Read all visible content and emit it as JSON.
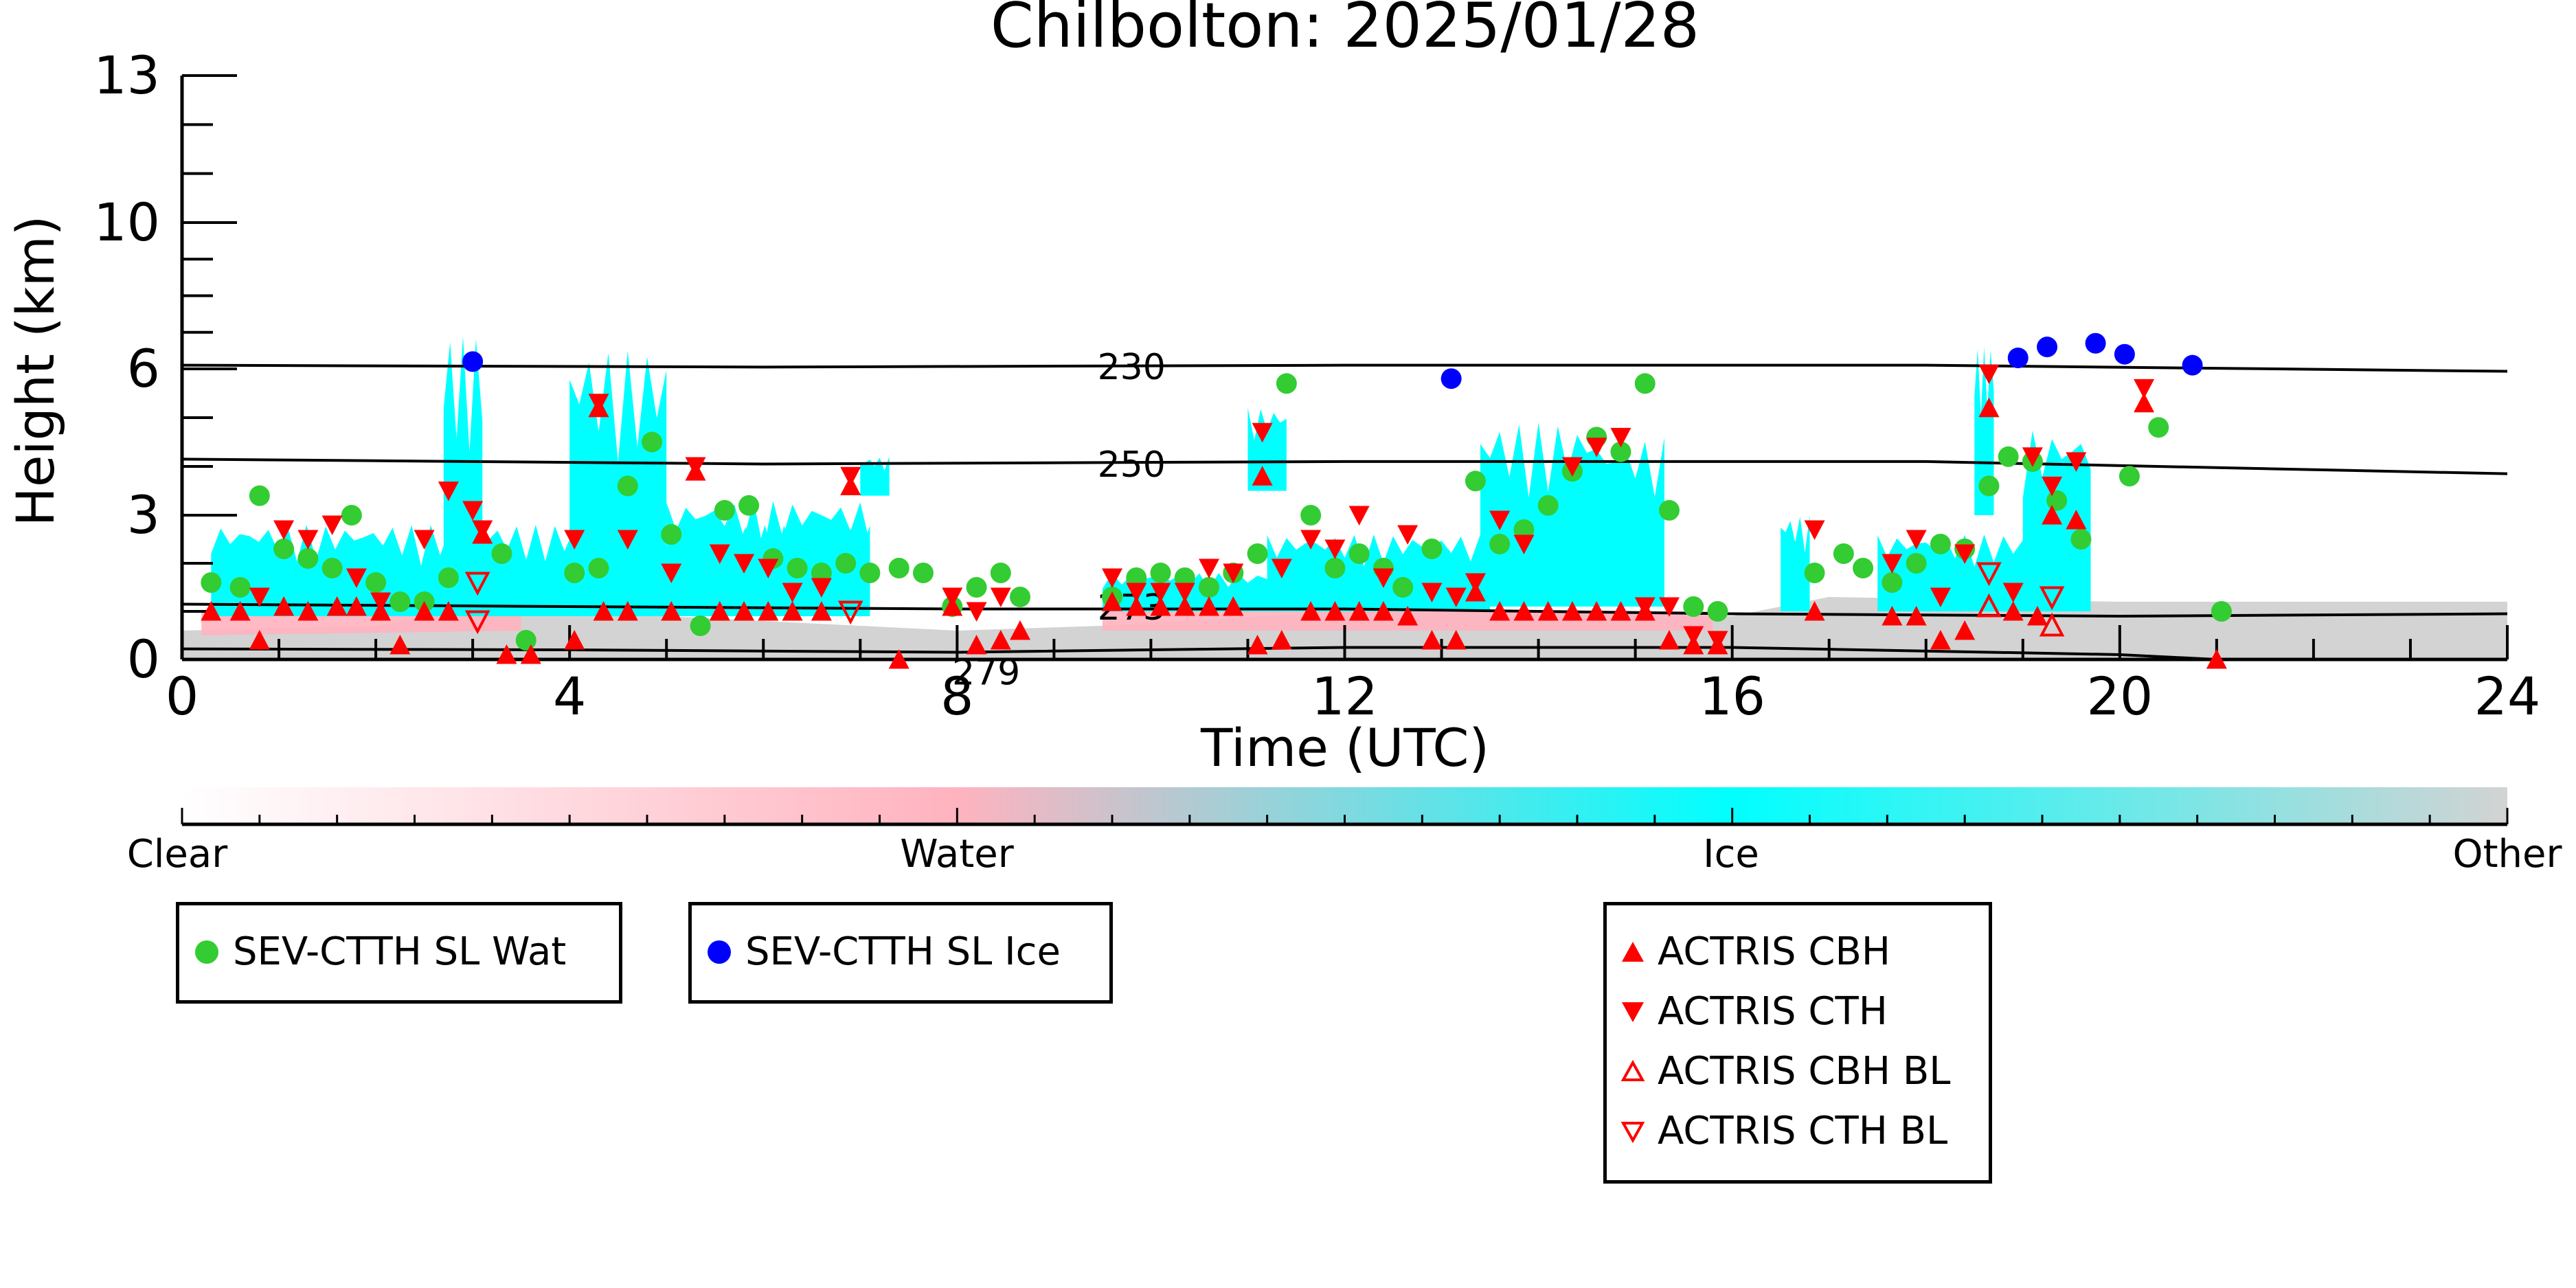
{
  "chart_data": {
    "type": "scatter",
    "title": "Chilbolton: 2025/01/28",
    "xlabel": "Time (UTC)",
    "ylabel": "Height (km)",
    "xlim": [
      0,
      24
    ],
    "ylim": [
      0,
      13
    ],
    "x_ticks": [
      0,
      4,
      8,
      12,
      16,
      20,
      24
    ],
    "y_ticks": [
      0,
      3,
      6,
      10,
      13
    ],
    "y_tick_labels": [
      "0",
      "3",
      "6",
      "10",
      "13"
    ],
    "y_tick_positions": [
      0,
      3,
      6,
      10,
      13
    ],
    "y_scale_note": "non-linear",
    "isotherms": [
      {
        "label": "230",
        "x": [
          0,
          6,
          12,
          18,
          24
        ],
        "y": [
          6.1,
          6.05,
          6.1,
          6.1,
          5.95
        ]
      },
      {
        "label": "250",
        "x": [
          0,
          6,
          12,
          18,
          24
        ],
        "y": [
          4.15,
          4.05,
          4.1,
          4.1,
          3.85
        ]
      },
      {
        "label": "273",
        "x": [
          0,
          4,
          8,
          12,
          16,
          20,
          24
        ],
        "y": [
          1.15,
          1.1,
          1.05,
          1.05,
          0.95,
          0.9,
          0.95
        ]
      },
      {
        "label": "279",
        "x": [
          0,
          4,
          8,
          12,
          16,
          20,
          21
        ],
        "y": [
          0.22,
          0.2,
          0.15,
          0.25,
          0.25,
          0.1,
          0.0
        ]
      }
    ],
    "colorbar": {
      "labels": [
        "Clear",
        "Water",
        "Ice",
        "Other"
      ],
      "colors": [
        "#ffffff",
        "#ffb3bf",
        "#00ffff",
        "#d3d3d3"
      ]
    },
    "series": [
      {
        "name": "SEV-CTTH SL Wat",
        "marker": "circle",
        "color": "#33cc33",
        "points": [
          [
            0.3,
            1.6
          ],
          [
            0.6,
            1.5
          ],
          [
            0.8,
            3.4
          ],
          [
            1.05,
            2.3
          ],
          [
            1.3,
            2.1
          ],
          [
            1.55,
            1.9
          ],
          [
            1.75,
            3.0
          ],
          [
            2.0,
            1.6
          ],
          [
            2.25,
            1.2
          ],
          [
            2.5,
            1.2
          ],
          [
            2.75,
            1.7
          ],
          [
            3.3,
            2.2
          ],
          [
            3.55,
            0.4
          ],
          [
            4.05,
            1.8
          ],
          [
            4.3,
            1.9
          ],
          [
            4.6,
            3.6
          ],
          [
            4.85,
            4.5
          ],
          [
            5.05,
            2.6
          ],
          [
            5.35,
            0.7
          ],
          [
            5.6,
            3.1
          ],
          [
            5.85,
            3.2
          ],
          [
            6.1,
            2.1
          ],
          [
            6.35,
            1.9
          ],
          [
            6.6,
            1.8
          ],
          [
            6.85,
            2.0
          ],
          [
            7.1,
            1.8
          ],
          [
            7.4,
            1.9
          ],
          [
            7.65,
            1.8
          ],
          [
            7.95,
            1.1
          ],
          [
            8.2,
            1.5
          ],
          [
            8.45,
            1.8
          ],
          [
            8.65,
            1.3
          ],
          [
            9.6,
            1.3
          ],
          [
            9.85,
            1.7
          ],
          [
            10.1,
            1.8
          ],
          [
            10.35,
            1.7
          ],
          [
            10.6,
            1.5
          ],
          [
            10.85,
            1.8
          ],
          [
            11.1,
            2.2
          ],
          [
            11.4,
            5.7
          ],
          [
            11.65,
            3.0
          ],
          [
            11.9,
            1.9
          ],
          [
            12.15,
            2.2
          ],
          [
            12.4,
            1.9
          ],
          [
            12.6,
            1.5
          ],
          [
            12.9,
            2.3
          ],
          [
            13.35,
            3.7
          ],
          [
            13.6,
            2.4
          ],
          [
            13.85,
            2.7
          ],
          [
            14.1,
            3.2
          ],
          [
            14.35,
            3.9
          ],
          [
            14.6,
            4.6
          ],
          [
            14.85,
            4.3
          ],
          [
            15.1,
            5.7
          ],
          [
            15.35,
            3.1
          ],
          [
            15.6,
            1.1
          ],
          [
            15.85,
            1.0
          ],
          [
            16.85,
            1.8
          ],
          [
            17.15,
            2.2
          ],
          [
            17.35,
            1.9
          ],
          [
            17.65,
            1.6
          ],
          [
            17.9,
            2.0
          ],
          [
            18.15,
            2.4
          ],
          [
            18.4,
            2.3
          ],
          [
            18.65,
            3.6
          ],
          [
            18.85,
            4.2
          ],
          [
            19.1,
            4.1
          ],
          [
            19.35,
            3.3
          ],
          [
            19.6,
            2.5
          ],
          [
            20.1,
            3.8
          ],
          [
            20.4,
            4.8
          ],
          [
            21.05,
            1.0
          ]
        ]
      },
      {
        "name": "SEV-CTTH SL Ice",
        "marker": "circle",
        "color": "#0000ff",
        "points": [
          [
            3.0,
            6.2
          ],
          [
            13.1,
            5.8
          ],
          [
            18.95,
            6.3
          ],
          [
            19.25,
            6.6
          ],
          [
            19.75,
            6.7
          ],
          [
            20.05,
            6.4
          ],
          [
            20.75,
            6.1
          ]
        ]
      },
      {
        "name": "ACTRIS CBH",
        "marker": "triangle-up",
        "color": "#ff0000",
        "filled": true,
        "points": [
          [
            0.3,
            1.0
          ],
          [
            0.6,
            1.0
          ],
          [
            0.8,
            0.4
          ],
          [
            1.05,
            1.1
          ],
          [
            1.3,
            1.0
          ],
          [
            1.6,
            1.1
          ],
          [
            1.8,
            1.1
          ],
          [
            2.05,
            1.0
          ],
          [
            2.25,
            0.3
          ],
          [
            2.5,
            1.0
          ],
          [
            2.75,
            1.0
          ],
          [
            3.1,
            2.6
          ],
          [
            3.35,
            0.1
          ],
          [
            3.6,
            0.1
          ],
          [
            4.05,
            0.4
          ],
          [
            4.3,
            5.2
          ],
          [
            4.35,
            1.0
          ],
          [
            4.6,
            1.0
          ],
          [
            5.05,
            1.0
          ],
          [
            5.3,
            3.9
          ],
          [
            5.55,
            1.0
          ],
          [
            5.8,
            1.0
          ],
          [
            6.05,
            1.0
          ],
          [
            6.3,
            1.0
          ],
          [
            6.6,
            1.0
          ],
          [
            6.9,
            3.6
          ],
          [
            7.4,
            0.0
          ],
          [
            7.95,
            1.1
          ],
          [
            8.2,
            0.3
          ],
          [
            8.45,
            0.4
          ],
          [
            8.65,
            0.6
          ],
          [
            9.6,
            1.2
          ],
          [
            9.85,
            1.1
          ],
          [
            10.1,
            1.1
          ],
          [
            10.35,
            1.1
          ],
          [
            10.6,
            1.1
          ],
          [
            10.85,
            1.1
          ],
          [
            11.1,
            0.3
          ],
          [
            11.15,
            3.8
          ],
          [
            11.35,
            0.4
          ],
          [
            11.65,
            1.0
          ],
          [
            11.9,
            1.0
          ],
          [
            12.15,
            1.0
          ],
          [
            12.4,
            1.0
          ],
          [
            12.65,
            0.9
          ],
          [
            12.9,
            0.4
          ],
          [
            13.15,
            0.4
          ],
          [
            13.35,
            1.4
          ],
          [
            13.6,
            1.0
          ],
          [
            13.85,
            1.0
          ],
          [
            14.1,
            1.0
          ],
          [
            14.35,
            1.0
          ],
          [
            14.6,
            1.0
          ],
          [
            14.85,
            1.0
          ],
          [
            15.1,
            1.0
          ],
          [
            15.35,
            0.4
          ],
          [
            15.6,
            0.3
          ],
          [
            15.85,
            0.3
          ],
          [
            16.85,
            1.0
          ],
          [
            17.65,
            0.9
          ],
          [
            17.9,
            0.9
          ],
          [
            18.15,
            0.4
          ],
          [
            18.4,
            0.6
          ],
          [
            18.65,
            5.2
          ],
          [
            18.9,
            1.0
          ],
          [
            19.15,
            0.9
          ],
          [
            19.3,
            3.0
          ],
          [
            19.55,
            2.9
          ],
          [
            20.25,
            5.3
          ],
          [
            21.0,
            0.0
          ]
        ]
      },
      {
        "name": "ACTRIS CTH",
        "marker": "triangle-down",
        "color": "#ff0000",
        "filled": true,
        "points": [
          [
            0.8,
            1.3
          ],
          [
            1.05,
            2.7
          ],
          [
            1.3,
            2.5
          ],
          [
            1.55,
            2.8
          ],
          [
            1.8,
            1.7
          ],
          [
            2.05,
            1.2
          ],
          [
            2.5,
            2.5
          ],
          [
            2.75,
            3.5
          ],
          [
            3.0,
            3.1
          ],
          [
            3.1,
            2.7
          ],
          [
            4.05,
            2.5
          ],
          [
            4.3,
            5.3
          ],
          [
            4.6,
            2.5
          ],
          [
            5.05,
            1.8
          ],
          [
            5.3,
            4.0
          ],
          [
            5.55,
            2.2
          ],
          [
            5.8,
            2.0
          ],
          [
            6.05,
            1.9
          ],
          [
            6.3,
            1.4
          ],
          [
            6.6,
            1.5
          ],
          [
            6.9,
            3.8
          ],
          [
            7.95,
            1.3
          ],
          [
            8.2,
            1.0
          ],
          [
            8.45,
            1.3
          ],
          [
            9.6,
            1.7
          ],
          [
            9.85,
            1.4
          ],
          [
            10.1,
            1.4
          ],
          [
            10.35,
            1.4
          ],
          [
            10.6,
            1.9
          ],
          [
            10.85,
            1.8
          ],
          [
            11.15,
            4.7
          ],
          [
            11.35,
            1.9
          ],
          [
            11.65,
            2.5
          ],
          [
            11.9,
            2.3
          ],
          [
            12.15,
            3.0
          ],
          [
            12.4,
            1.7
          ],
          [
            12.65,
            2.6
          ],
          [
            12.9,
            1.4
          ],
          [
            13.15,
            1.3
          ],
          [
            13.35,
            1.6
          ],
          [
            13.6,
            2.9
          ],
          [
            13.85,
            2.4
          ],
          [
            14.35,
            4.0
          ],
          [
            14.6,
            4.4
          ],
          [
            14.85,
            4.6
          ],
          [
            15.1,
            1.1
          ],
          [
            15.35,
            1.1
          ],
          [
            15.6,
            0.5
          ],
          [
            15.85,
            0.4
          ],
          [
            16.85,
            2.7
          ],
          [
            17.65,
            2.0
          ],
          [
            17.9,
            2.5
          ],
          [
            18.15,
            1.3
          ],
          [
            18.4,
            2.2
          ],
          [
            18.65,
            5.9
          ],
          [
            18.9,
            1.4
          ],
          [
            19.1,
            4.2
          ],
          [
            19.3,
            3.6
          ],
          [
            19.55,
            4.1
          ],
          [
            20.25,
            5.6
          ]
        ]
      },
      {
        "name": "ACTRIS CBH BL",
        "marker": "triangle-up",
        "color": "#ff0000",
        "filled": false,
        "points": [
          [
            18.65,
            1.1
          ],
          [
            19.3,
            0.7
          ]
        ]
      },
      {
        "name": "ACTRIS CTH BL",
        "marker": "triangle-down",
        "color": "#ff0000",
        "filled": false,
        "points": [
          [
            3.05,
            1.6
          ],
          [
            3.05,
            0.8
          ],
          [
            6.9,
            1.0
          ],
          [
            18.65,
            1.8
          ],
          [
            19.3,
            1.3
          ]
        ]
      }
    ],
    "legend_groups": [
      [
        "SEV-CTTH SL Wat"
      ],
      [
        "SEV-CTTH SL Ice"
      ],
      [
        "ACTRIS CBH",
        "ACTRIS CTH",
        "ACTRIS CBH BL",
        "ACTRIS CTH BL"
      ]
    ]
  }
}
